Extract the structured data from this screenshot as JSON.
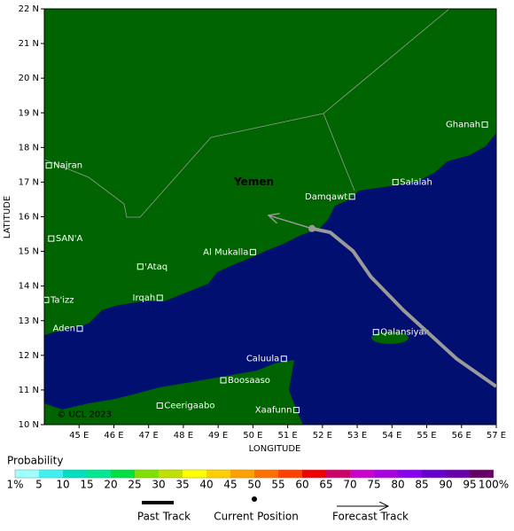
{
  "map": {
    "region_label": {
      "text": "Yemen",
      "lon": 50.03,
      "lat": 17.0
    },
    "copyright": {
      "text": "© UCL 2023",
      "lon": 45.15,
      "lat": 10.3
    },
    "x_axis_label": "LONGITUDE",
    "y_axis_label": "LATITUDE",
    "xlim": [
      44,
      57
    ],
    "ylim": [
      10,
      22
    ],
    "xticks": [
      {
        "value": 45,
        "label": "45 E"
      },
      {
        "value": 46,
        "label": "46 E"
      },
      {
        "value": 47,
        "label": "47 E"
      },
      {
        "value": 48,
        "label": "48 E"
      },
      {
        "value": 49,
        "label": "49 E"
      },
      {
        "value": 50,
        "label": "50 E"
      },
      {
        "value": 51,
        "label": "51 E"
      },
      {
        "value": 52,
        "label": "52 E"
      },
      {
        "value": 53,
        "label": "53 E"
      },
      {
        "value": 54,
        "label": "54 E"
      },
      {
        "value": 55,
        "label": "55 E"
      },
      {
        "value": 56,
        "label": "56 E"
      },
      {
        "value": 57,
        "label": "57 E"
      }
    ],
    "yticks": [
      {
        "value": 10,
        "label": "10 N"
      },
      {
        "value": 11,
        "label": "11 N"
      },
      {
        "value": 12,
        "label": "12 N"
      },
      {
        "value": 13,
        "label": "13 N"
      },
      {
        "value": 14,
        "label": "14 N"
      },
      {
        "value": 15,
        "label": "15 N"
      },
      {
        "value": 16,
        "label": "16 N"
      },
      {
        "value": 17,
        "label": "17 N"
      },
      {
        "value": 18,
        "label": "18 N"
      },
      {
        "value": 19,
        "label": "19 N"
      },
      {
        "value": 20,
        "label": "20 N"
      },
      {
        "value": 21,
        "label": "21 N"
      },
      {
        "value": 22,
        "label": "22 N"
      }
    ],
    "places": [
      {
        "name": "Najran",
        "lon": 44.13,
        "lat": 17.48
      },
      {
        "name": "SAN'A",
        "lon": 44.2,
        "lat": 15.37
      },
      {
        "name": "Ta'izz",
        "lon": 44.05,
        "lat": 13.6
      },
      {
        "name": "Aden",
        "lon": 45.02,
        "lat": 12.77
      },
      {
        "name": "Irqah",
        "lon": 47.32,
        "lat": 13.66
      },
      {
        "name": "'Ataq",
        "lon": 46.76,
        "lat": 14.56
      },
      {
        "name": "Al Mukalla",
        "lon": 50.0,
        "lat": 14.98
      },
      {
        "name": "Damqawt",
        "lon": 52.85,
        "lat": 16.58
      },
      {
        "name": "Salalah",
        "lon": 54.1,
        "lat": 17.0
      },
      {
        "name": "Ghanah",
        "lon": 56.67,
        "lat": 18.66
      },
      {
        "name": "Qalansiyah",
        "lon": 53.54,
        "lat": 12.67
      },
      {
        "name": "Caluula",
        "lon": 50.89,
        "lat": 11.9
      },
      {
        "name": "Boosaaso",
        "lon": 49.15,
        "lat": 11.28
      },
      {
        "name": "Ceerigaabo",
        "lon": 47.32,
        "lat": 10.55
      },
      {
        "name": "Xaafunn",
        "lon": 51.25,
        "lat": 10.42
      }
    ],
    "past_track": {
      "color": "#9a9a9a",
      "lon": [
        57.0,
        55.86,
        54.33,
        53.39,
        52.88,
        52.22,
        51.7
      ],
      "lat": [
        11.1,
        11.9,
        13.3,
        14.27,
        15.01,
        15.55,
        15.66
      ]
    },
    "current_position": {
      "lon": 51.7,
      "lat": 15.66
    },
    "forecast_track": {
      "color": "#9a9a9a",
      "lon": [
        51.7,
        50.45
      ],
      "lat": [
        15.66,
        16.04
      ]
    },
    "colorbar": {
      "title": "Probability",
      "labels": [
        "1%",
        "5",
        "10",
        "15",
        "20",
        "25",
        "30",
        "35",
        "40",
        "45",
        "50",
        "55",
        "60",
        "65",
        "70",
        "75",
        "80",
        "85",
        "90",
        "95",
        "100%"
      ],
      "colors": [
        "#a0ffff",
        "#40f0f0",
        "#00e0c0",
        "#00e890",
        "#00e040",
        "#80e000",
        "#c0e000",
        "#ffff00",
        "#ffd000",
        "#ffa000",
        "#ff7000",
        "#ff4000",
        "#ee0000",
        "#cc0066",
        "#cc00cc",
        "#aa00dd",
        "#8800ee",
        "#6600cc",
        "#6600aa",
        "#660066"
      ]
    },
    "legend": {
      "past": "Past Track",
      "current": "Current Position",
      "forecast": "Forecast Track"
    }
  }
}
